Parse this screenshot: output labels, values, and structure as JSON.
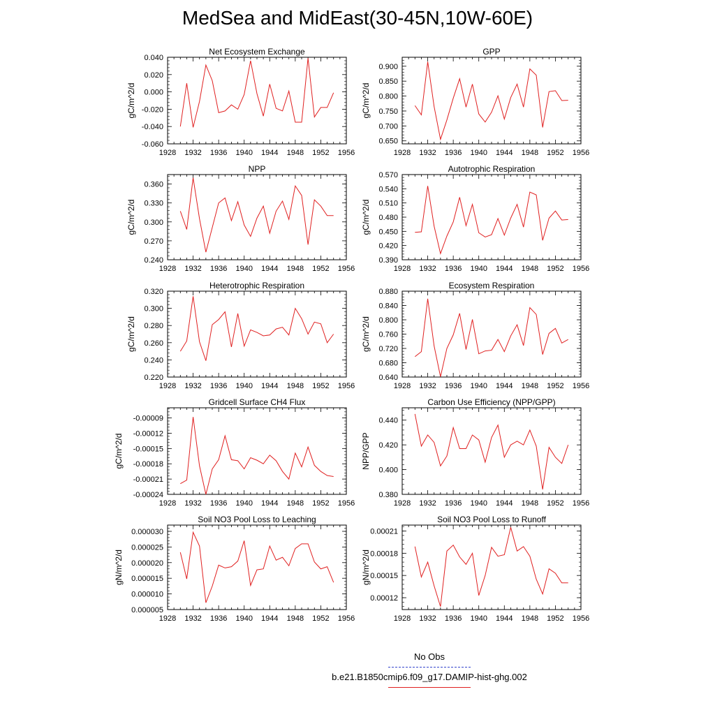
{
  "title": "MedSea and MidEast(30-45N,10W-60E)",
  "legend": {
    "obs_label": "No Obs",
    "obs_color": "#3344cc",
    "case_label": "b.e21.B1850cmip6.f09_g17.DAMIP-hist-ghg.002",
    "case_color": "#e02020"
  },
  "chart_data": [
    {
      "type": "line",
      "title": "Net Ecosystem Exchange",
      "ylabel": "gC/m^2/d",
      "xlim": [
        1928,
        1956
      ],
      "ylim": [
        -0.06,
        0.04
      ],
      "xticks": [
        "1928",
        "1932",
        "1936",
        "1940",
        "1944",
        "1948",
        "1952",
        "1956"
      ],
      "yticks": [
        "-0.060",
        "-0.040",
        "-0.020",
        "0.000",
        "0.020",
        "0.040"
      ],
      "x": [
        1930,
        1931,
        1932,
        1933,
        1934,
        1935,
        1936,
        1937,
        1938,
        1939,
        1940,
        1941,
        1942,
        1943,
        1944,
        1945,
        1946,
        1947,
        1948,
        1949,
        1950,
        1951,
        1952,
        1953,
        1954
      ],
      "values": [
        -0.04,
        0.01,
        -0.041,
        -0.011,
        0.031,
        0.013,
        -0.024,
        -0.022,
        -0.015,
        -0.02,
        -0.003,
        0.036,
        -0.002,
        -0.028,
        0.009,
        -0.019,
        -0.022,
        0.001,
        -0.035,
        -0.035,
        0.039,
        -0.029,
        -0.018,
        -0.018,
        -0.001
      ]
    },
    {
      "type": "line",
      "title": "GPP",
      "ylabel": "gC/m^2/d",
      "xlim": [
        1928,
        1956
      ],
      "ylim": [
        0.64,
        0.93
      ],
      "xticks": [
        "1928",
        "1932",
        "1936",
        "1940",
        "1944",
        "1948",
        "1952",
        "1956"
      ],
      "yticks": [
        "0.650",
        "0.700",
        "0.750",
        "0.800",
        "0.850",
        "0.900"
      ],
      "x": [
        1930,
        1931,
        1932,
        1933,
        1934,
        1935,
        1936,
        1937,
        1938,
        1939,
        1940,
        1941,
        1942,
        1943,
        1944,
        1945,
        1946,
        1947,
        1948,
        1949,
        1950,
        1951,
        1952,
        1953,
        1954
      ],
      "values": [
        0.768,
        0.737,
        0.915,
        0.765,
        0.655,
        0.72,
        0.793,
        0.858,
        0.763,
        0.84,
        0.74,
        0.713,
        0.746,
        0.801,
        0.723,
        0.795,
        0.84,
        0.763,
        0.891,
        0.87,
        0.695,
        0.815,
        0.818,
        0.785,
        0.786
      ]
    },
    {
      "type": "line",
      "title": "NPP",
      "ylabel": "gC/m^2/d",
      "xlim": [
        1928,
        1956
      ],
      "ylim": [
        0.24,
        0.375
      ],
      "xticks": [
        "1928",
        "1932",
        "1936",
        "1940",
        "1944",
        "1948",
        "1952",
        "1956"
      ],
      "yticks": [
        "0.240",
        "0.270",
        "0.300",
        "0.330",
        "0.360"
      ],
      "x": [
        1930,
        1931,
        1932,
        1933,
        1934,
        1935,
        1936,
        1937,
        1938,
        1939,
        1940,
        1941,
        1942,
        1943,
        1944,
        1945,
        1946,
        1947,
        1948,
        1949,
        1950,
        1951,
        1952,
        1953,
        1954
      ],
      "values": [
        0.317,
        0.288,
        0.37,
        0.305,
        0.252,
        0.291,
        0.33,
        0.338,
        0.302,
        0.332,
        0.295,
        0.277,
        0.306,
        0.325,
        0.282,
        0.317,
        0.333,
        0.304,
        0.357,
        0.342,
        0.264,
        0.335,
        0.325,
        0.31,
        0.31
      ]
    },
    {
      "type": "line",
      "title": "Autotrophic Respiration",
      "ylabel": "gC/m^2/d",
      "xlim": [
        1928,
        1956
      ],
      "ylim": [
        0.39,
        0.57
      ],
      "xticks": [
        "1928",
        "1932",
        "1936",
        "1940",
        "1944",
        "1948",
        "1952",
        "1956"
      ],
      "yticks": [
        "0.390",
        "0.420",
        "0.450",
        "0.480",
        "0.510",
        "0.540",
        "0.570"
      ],
      "x": [
        1930,
        1931,
        1932,
        1933,
        1934,
        1935,
        1936,
        1937,
        1938,
        1939,
        1940,
        1941,
        1942,
        1943,
        1944,
        1945,
        1946,
        1947,
        1948,
        1949,
        1950,
        1951,
        1952,
        1953,
        1954
      ],
      "values": [
        0.448,
        0.449,
        0.546,
        0.461,
        0.403,
        0.44,
        0.47,
        0.522,
        0.462,
        0.507,
        0.447,
        0.438,
        0.443,
        0.477,
        0.442,
        0.478,
        0.507,
        0.459,
        0.533,
        0.527,
        0.431,
        0.478,
        0.493,
        0.474,
        0.475
      ]
    },
    {
      "type": "line",
      "title": "Heterotrophic Respiration",
      "ylabel": "gC/m^2/d",
      "xlim": [
        1928,
        1956
      ],
      "ylim": [
        0.22,
        0.32
      ],
      "xticks": [
        "1928",
        "1932",
        "1936",
        "1940",
        "1944",
        "1948",
        "1952",
        "1956"
      ],
      "yticks": [
        "0.220",
        "0.240",
        "0.260",
        "0.280",
        "0.300",
        "0.320"
      ],
      "x": [
        1930,
        1931,
        1932,
        1933,
        1934,
        1935,
        1936,
        1937,
        1938,
        1939,
        1940,
        1941,
        1942,
        1943,
        1944,
        1945,
        1946,
        1947,
        1948,
        1949,
        1950,
        1951,
        1952,
        1953,
        1954
      ],
      "values": [
        0.25,
        0.262,
        0.314,
        0.261,
        0.239,
        0.281,
        0.287,
        0.296,
        0.255,
        0.294,
        0.256,
        0.275,
        0.272,
        0.268,
        0.269,
        0.276,
        0.278,
        0.269,
        0.3,
        0.288,
        0.27,
        0.284,
        0.282,
        0.26,
        0.27
      ]
    },
    {
      "type": "line",
      "title": "Ecosystem Respiration",
      "ylabel": "gC/m^2/d",
      "xlim": [
        1928,
        1956
      ],
      "ylim": [
        0.64,
        0.88
      ],
      "xticks": [
        "1928",
        "1932",
        "1936",
        "1940",
        "1944",
        "1948",
        "1952",
        "1956"
      ],
      "yticks": [
        "0.640",
        "0.680",
        "0.720",
        "0.760",
        "0.800",
        "0.840",
        "0.880"
      ],
      "x": [
        1930,
        1931,
        1932,
        1933,
        1934,
        1935,
        1936,
        1937,
        1938,
        1939,
        1940,
        1941,
        1942,
        1943,
        1944,
        1945,
        1946,
        1947,
        1948,
        1949,
        1950,
        1951,
        1952,
        1953,
        1954
      ],
      "values": [
        0.697,
        0.711,
        0.859,
        0.727,
        0.641,
        0.72,
        0.758,
        0.818,
        0.717,
        0.801,
        0.705,
        0.713,
        0.715,
        0.745,
        0.711,
        0.755,
        0.786,
        0.728,
        0.834,
        0.815,
        0.703,
        0.762,
        0.776,
        0.735,
        0.745
      ]
    },
    {
      "type": "line",
      "title": "Gridcell Surface CH4 Flux",
      "ylabel": "gC/m^2/d",
      "xlim": [
        1928,
        1956
      ],
      "ylim": [
        -0.00024,
        -7e-05
      ],
      "xticks": [
        "1928",
        "1932",
        "1936",
        "1940",
        "1944",
        "1948",
        "1952",
        "1956"
      ],
      "yticks": [
        "-0.00024",
        "-0.00021",
        "-0.00018",
        "-0.00015",
        "-0.00012",
        "-0.00009"
      ],
      "x": [
        1930,
        1931,
        1932,
        1933,
        1934,
        1935,
        1936,
        1937,
        1938,
        1939,
        1940,
        1941,
        1942,
        1943,
        1944,
        1945,
        1946,
        1947,
        1948,
        1949,
        1950,
        1951,
        1952,
        1953,
        1954
      ],
      "values": [
        -0.000219,
        -0.000212,
        -8.8e-05,
        -0.000184,
        -0.00024,
        -0.00019,
        -0.000172,
        -0.000125,
        -0.000172,
        -0.000174,
        -0.00019,
        -0.000168,
        -0.000173,
        -0.00018,
        -0.000163,
        -0.000174,
        -0.000195,
        -0.00021,
        -0.000159,
        -0.000186,
        -0.000147,
        -0.000183,
        -0.000195,
        -0.000203,
        -0.000205
      ]
    },
    {
      "type": "line",
      "title": "Carbon Use Efficiency (NPP/GPP)",
      "ylabel": "NPP/GPP",
      "xlim": [
        1928,
        1956
      ],
      "ylim": [
        0.38,
        0.45
      ],
      "xticks": [
        "1928",
        "1932",
        "1936",
        "1940",
        "1944",
        "1948",
        "1952",
        "1956"
      ],
      "yticks": [
        "0.380",
        "0.400",
        "0.420",
        "0.440"
      ],
      "x": [
        1930,
        1931,
        1932,
        1933,
        1934,
        1935,
        1936,
        1937,
        1938,
        1939,
        1940,
        1941,
        1942,
        1943,
        1944,
        1945,
        1946,
        1947,
        1948,
        1949,
        1950,
        1951,
        1952,
        1953,
        1954
      ],
      "values": [
        0.445,
        0.419,
        0.428,
        0.422,
        0.403,
        0.411,
        0.434,
        0.417,
        0.417,
        0.428,
        0.424,
        0.406,
        0.426,
        0.436,
        0.41,
        0.42,
        0.423,
        0.42,
        0.432,
        0.419,
        0.384,
        0.418,
        0.41,
        0.405,
        0.42
      ]
    },
    {
      "type": "line",
      "title": "Soil NO3 Pool Loss to Leaching",
      "ylabel": "gN/m^2/d",
      "xlim": [
        1928,
        1956
      ],
      "ylim": [
        5e-06,
        3.2e-05
      ],
      "xticks": [
        "1928",
        "1932",
        "1936",
        "1940",
        "1944",
        "1948",
        "1952",
        "1956"
      ],
      "yticks": [
        "0.000005",
        "0.000010",
        "0.000015",
        "0.000020",
        "0.000025",
        "0.000030"
      ],
      "x": [
        1930,
        1931,
        1932,
        1933,
        1934,
        1935,
        1936,
        1937,
        1938,
        1939,
        1940,
        1941,
        1942,
        1943,
        1944,
        1945,
        1946,
        1947,
        1948,
        1949,
        1950,
        1951,
        1952,
        1953,
        1954
      ],
      "values": [
        2.33e-05,
        1.48e-05,
        2.97e-05,
        2.53e-05,
        7.2e-06,
        1.25e-05,
        1.92e-05,
        1.83e-05,
        1.87e-05,
        2.05e-05,
        2.7e-05,
        1.27e-05,
        1.77e-05,
        1.8e-05,
        2.53e-05,
        2.08e-05,
        2.17e-05,
        1.9e-05,
        2.45e-05,
        2.6e-05,
        2.6e-05,
        2.02e-05,
        1.8e-05,
        1.87e-05,
        1.37e-05
      ]
    },
    {
      "type": "line",
      "title": "Soil NO3 Pool Loss to Runoff",
      "ylabel": "gN/m^2/d",
      "xlim": [
        1928,
        1956
      ],
      "ylim": [
        0.000104,
        0.000218
      ],
      "xticks": [
        "1928",
        "1932",
        "1936",
        "1940",
        "1944",
        "1948",
        "1952",
        "1956"
      ],
      "yticks": [
        "0.00012",
        "0.00015",
        "0.00018",
        "0.00021"
      ],
      "x": [
        1930,
        1931,
        1932,
        1933,
        1934,
        1935,
        1936,
        1937,
        1938,
        1939,
        1940,
        1941,
        1942,
        1943,
        1944,
        1945,
        1946,
        1947,
        1948,
        1949,
        1950,
        1951,
        1952,
        1953,
        1954
      ],
      "values": [
        0.000189,
        0.000148,
        0.000168,
        0.000136,
        0.000108,
        0.000183,
        0.000191,
        0.000175,
        0.000165,
        0.00018,
        0.000123,
        0.00015,
        0.000188,
        0.000176,
        0.000178,
        0.000215,
        0.000183,
        0.000189,
        0.000176,
        0.000145,
        0.000125,
        0.000159,
        0.000153,
        0.00014,
        0.00014
      ]
    }
  ]
}
